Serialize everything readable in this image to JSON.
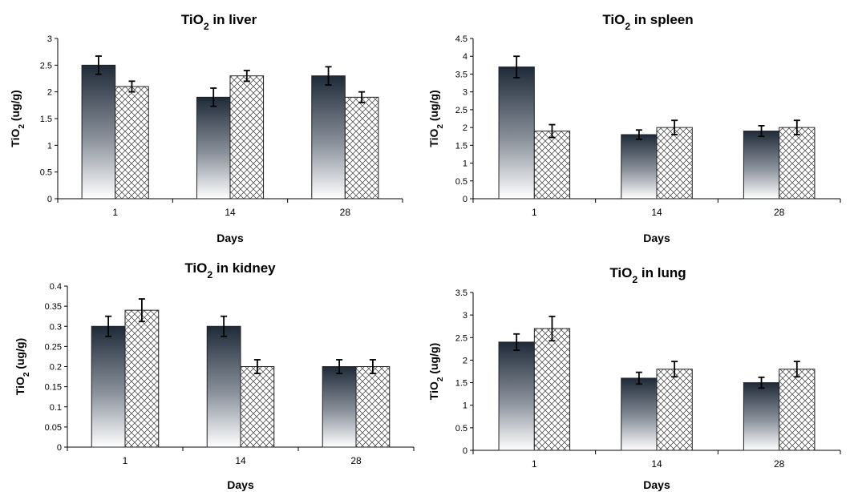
{
  "chart_data": [
    {
      "type": "bar",
      "title": "TiO",
      "title_sub": "2",
      "title_rest": " in liver",
      "ylabel": "TiO",
      "ylabel_sub": "2",
      "ylabel_rest": " (ug/g)",
      "xlabel": "Days",
      "categories": [
        "1",
        "14",
        "28"
      ],
      "ylim": [
        0,
        3
      ],
      "yticks": [
        "0",
        "0.5",
        "1",
        "1.5",
        "2",
        "2.5",
        "3"
      ],
      "ytick_values": [
        0,
        0.5,
        1,
        1.5,
        2,
        2.5,
        3
      ],
      "series": [
        {
          "style": "gradient",
          "values": [
            2.5,
            1.9,
            2.3
          ],
          "errors": [
            0.17,
            0.17,
            0.17
          ]
        },
        {
          "style": "crosshatch",
          "values": [
            2.1,
            2.3,
            1.9
          ],
          "errors": [
            0.1,
            0.1,
            0.1
          ]
        }
      ],
      "grid": false,
      "legend": "none"
    },
    {
      "type": "bar",
      "title": "TiO",
      "title_sub": "2",
      "title_rest": " in spleen",
      "ylabel": "TiO",
      "ylabel_sub": "2",
      "ylabel_rest": " (ug/g)",
      "xlabel": "Days",
      "categories": [
        "1",
        "14",
        "28"
      ],
      "ylim": [
        0,
        4.5
      ],
      "yticks": [
        "0",
        "0.5",
        "1",
        "1.5",
        "2",
        "2.5",
        "3",
        "3.5",
        "4",
        "4.5"
      ],
      "ytick_values": [
        0,
        0.5,
        1,
        1.5,
        2,
        2.5,
        3,
        3.5,
        4,
        4.5
      ],
      "series": [
        {
          "style": "gradient",
          "values": [
            3.7,
            1.8,
            1.9
          ],
          "errors": [
            0.3,
            0.13,
            0.15
          ]
        },
        {
          "style": "crosshatch",
          "values": [
            1.9,
            2.0,
            2.0
          ],
          "errors": [
            0.18,
            0.2,
            0.2
          ]
        }
      ],
      "grid": false,
      "legend": "none"
    },
    {
      "type": "bar",
      "title": "TiO",
      "title_sub": "2",
      "title_rest": " in kidney",
      "ylabel": "TiO",
      "ylabel_sub": "2",
      "ylabel_rest": " (ug/g)",
      "xlabel": "Days",
      "categories": [
        "1",
        "14",
        "28"
      ],
      "ylim": [
        0,
        0.4
      ],
      "yticks": [
        "0",
        "0.05",
        "0.1",
        "0.15",
        "0.2",
        "0.25",
        "0.3",
        "0.35",
        "0.4"
      ],
      "ytick_values": [
        0,
        0.05,
        0.1,
        0.15,
        0.2,
        0.25,
        0.3,
        0.35,
        0.4
      ],
      "series": [
        {
          "style": "gradient",
          "values": [
            0.3,
            0.3,
            0.2
          ],
          "errors": [
            0.025,
            0.025,
            0.017
          ]
        },
        {
          "style": "crosshatch",
          "values": [
            0.34,
            0.2,
            0.2
          ],
          "errors": [
            0.028,
            0.017,
            0.017
          ]
        }
      ],
      "grid": false,
      "legend": "none"
    },
    {
      "type": "bar",
      "title": "TiO",
      "title_sub": "2",
      "title_rest": " in lung",
      "ylabel": "TiO",
      "ylabel_sub": "2",
      "ylabel_rest": " (ug/g)",
      "xlabel": "Days",
      "categories": [
        "1",
        "14",
        "28"
      ],
      "ylim": [
        0,
        3.5
      ],
      "yticks": [
        "0",
        "0.5",
        "1",
        "1.5",
        "2",
        "2.5",
        "3",
        "3.5"
      ],
      "ytick_values": [
        0,
        0.5,
        1,
        1.5,
        2,
        2.5,
        3,
        3.5
      ],
      "series": [
        {
          "style": "gradient",
          "values": [
            2.4,
            1.6,
            1.5
          ],
          "errors": [
            0.18,
            0.13,
            0.12
          ]
        },
        {
          "style": "crosshatch",
          "values": [
            2.7,
            1.8,
            1.8
          ],
          "errors": [
            0.27,
            0.17,
            0.17
          ]
        }
      ],
      "grid": false,
      "legend": "none"
    }
  ]
}
